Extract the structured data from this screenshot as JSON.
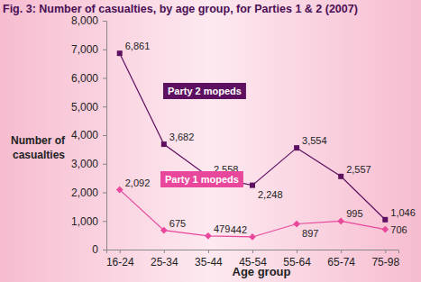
{
  "chart_data": {
    "type": "line",
    "title": "Fig. 3: Number of casualties, by age group, for Parties 1 & 2 (2007)",
    "x_label": "Age group",
    "y_label": "Number of casualties",
    "categories": [
      "16-24",
      "25-34",
      "35-44",
      "45-54",
      "55-64",
      "65-74",
      "75-98"
    ],
    "series": [
      {
        "name": "Party 2 mopeds",
        "color": "#5e1060",
        "marker": "square",
        "line_style": "solid",
        "values": [
          6861,
          3682,
          2558,
          2248,
          3554,
          2557,
          1046
        ],
        "value_labels": [
          "6,861",
          "3,682",
          "2,558",
          "2,248",
          "3,554",
          "2,557",
          "1,046"
        ]
      },
      {
        "name": "Party 1 mopeds",
        "color": "#e8479b",
        "marker": "diamond",
        "line_style": "solid",
        "values": [
          2092,
          675,
          479,
          442,
          897,
          995,
          706
        ],
        "value_labels": [
          "2,092",
          "675",
          "479",
          "442",
          "897",
          "995",
          "706"
        ]
      }
    ],
    "ylim": [
      0,
      8000
    ],
    "yticks": [
      0,
      {
        "value": 1000,
        "label": "1,000"
      },
      {
        "value": 2000,
        "label": "2,000"
      },
      {
        "value": 3000,
        "label": "3,000"
      },
      {
        "value": 4000,
        "label": "4,000"
      },
      {
        "value": 5000,
        "label": "5,000"
      },
      {
        "value": 6000,
        "label": "6,000"
      },
      {
        "value": 7000,
        "label": "7,000"
      },
      {
        "value": 8000,
        "label": "8,000"
      }
    ],
    "grid": false,
    "data_labels": true
  }
}
